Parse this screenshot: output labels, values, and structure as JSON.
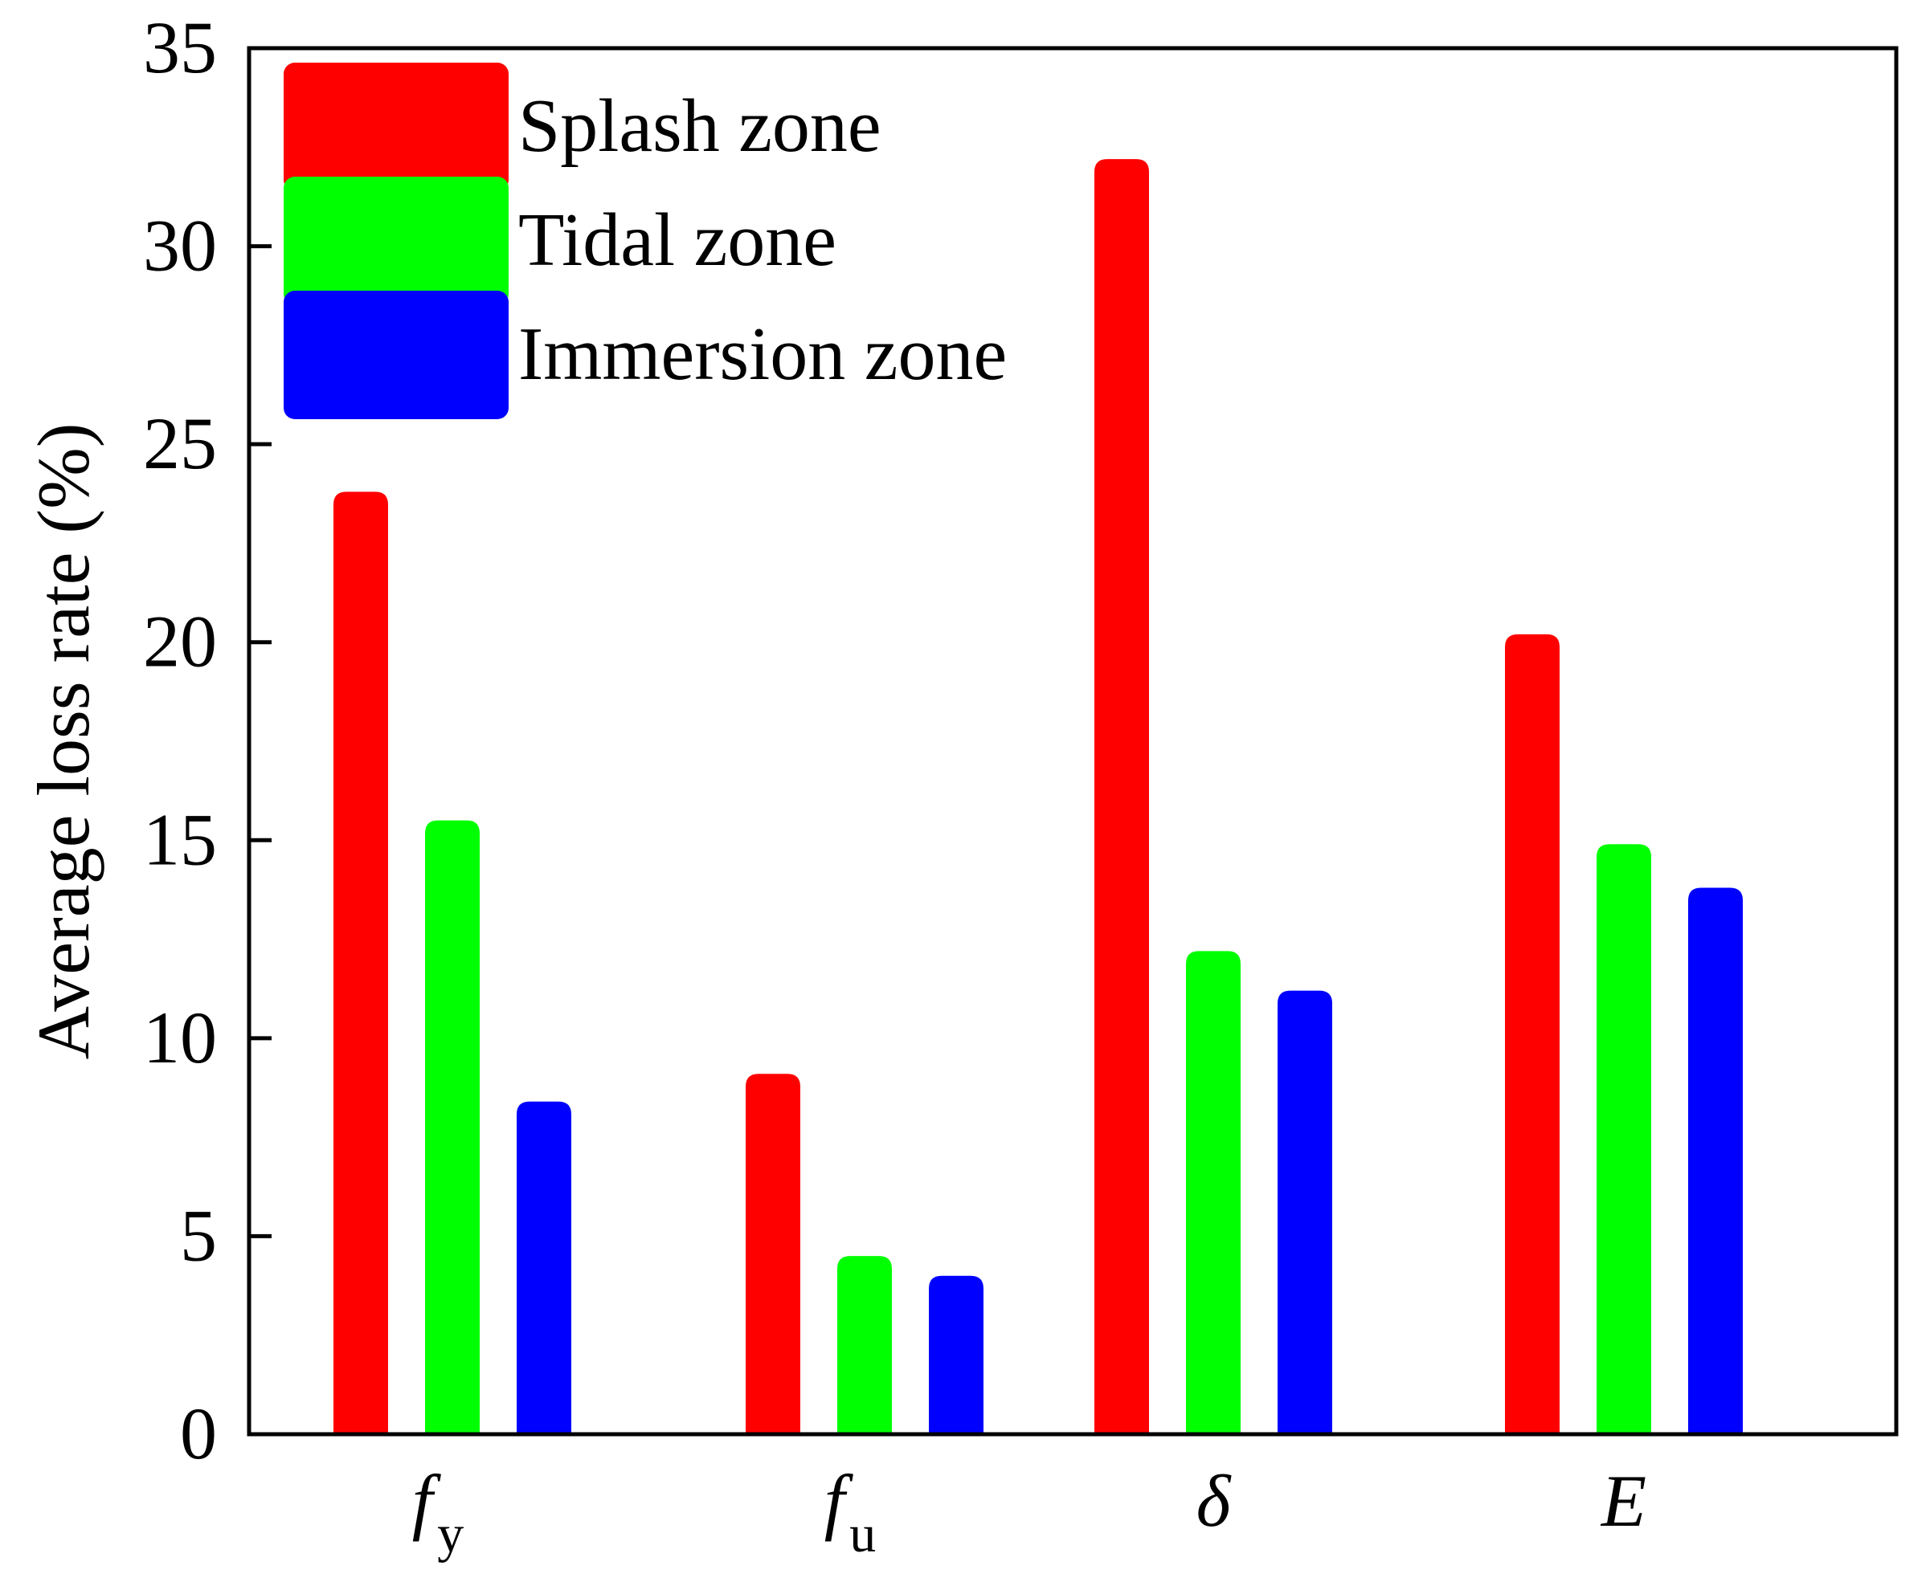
{
  "chart_data": {
    "type": "bar",
    "ylabel": "Average loss rate (%)",
    "xlabel": "",
    "ylim": [
      0,
      35
    ],
    "yticks": [
      0,
      5,
      10,
      15,
      20,
      25,
      30,
      35
    ],
    "categories": [
      {
        "main": "f",
        "sub": "y"
      },
      {
        "main": "f",
        "sub": "u"
      },
      {
        "main": "δ",
        "sub": ""
      },
      {
        "main": "E",
        "sub": ""
      }
    ],
    "series": [
      {
        "name": "Splash zone",
        "color": "#ff0000",
        "values": [
          23.8,
          9.1,
          32.2,
          20.2
        ]
      },
      {
        "name": "Tidal zone",
        "color": "#00ff00",
        "values": [
          15.5,
          4.5,
          12.2,
          14.9
        ]
      },
      {
        "name": "Immersion zone",
        "color": "#0000ff",
        "values": [
          8.4,
          4.0,
          11.2,
          13.8
        ]
      }
    ],
    "legend_position": "top-left"
  }
}
